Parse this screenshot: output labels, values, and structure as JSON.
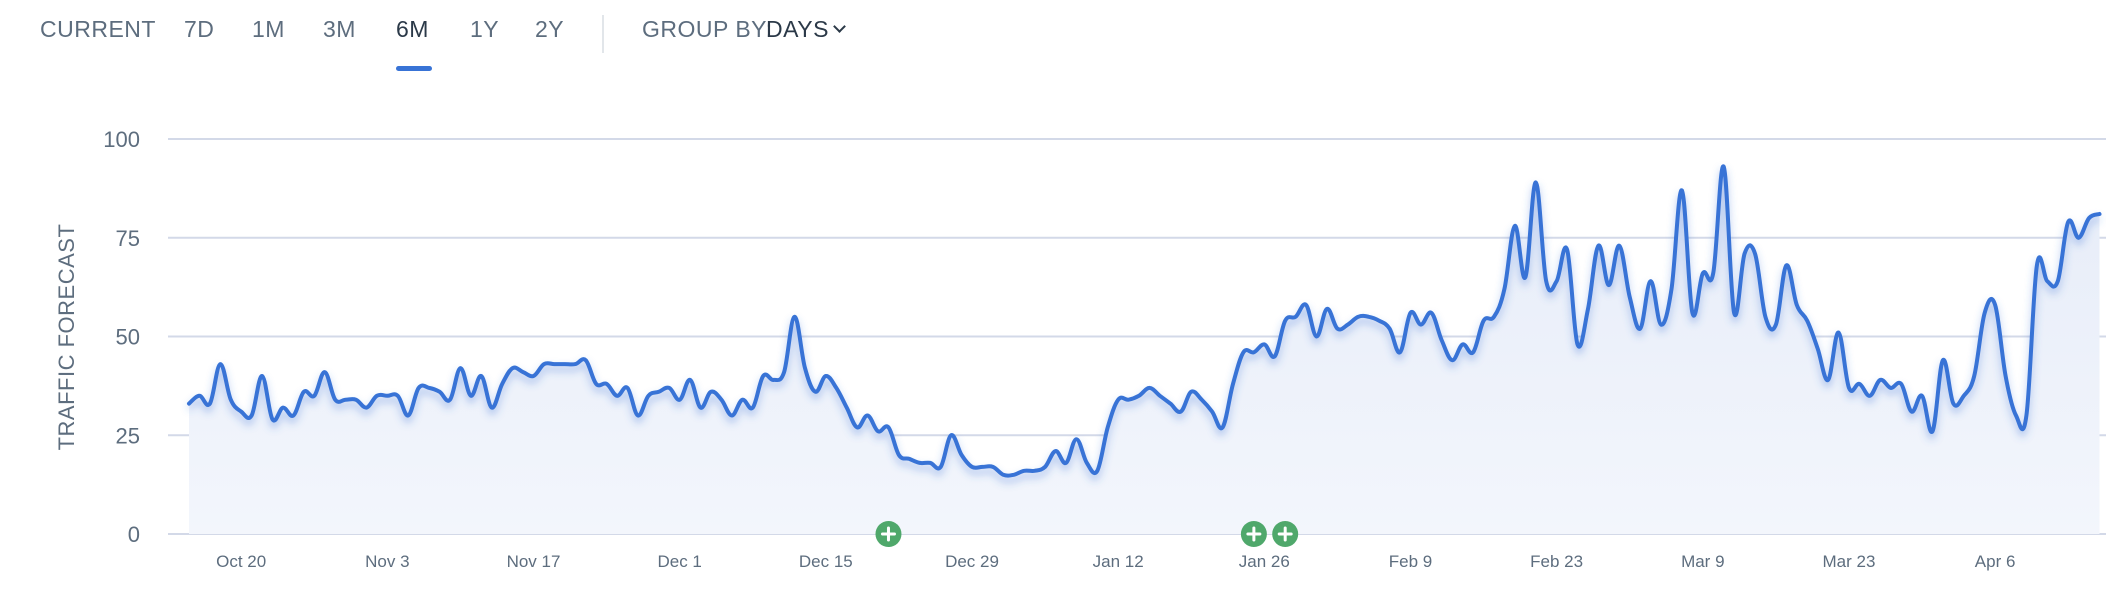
{
  "toolbar": {
    "tabs": [
      {
        "label": "CURRENT"
      },
      {
        "label": "7D"
      },
      {
        "label": "1M"
      },
      {
        "label": "3M"
      },
      {
        "label": "6M",
        "active": true
      },
      {
        "label": "1Y"
      },
      {
        "label": "2Y"
      }
    ],
    "group_by_label": "GROUP BY:",
    "group_by_value": "DAYS"
  },
  "colors": {
    "line": "#3873d6",
    "area": "#e9eef8",
    "gridline": "#d3d9e8",
    "annotation": "#4fa86b",
    "text": "#5d6d7e",
    "active_tab": "#2b3948"
  },
  "chart_data": {
    "type": "area",
    "ylabel": "TRAFFIC FORECAST",
    "xlabel": "",
    "ylim": [
      0,
      100
    ],
    "yticks": [
      0,
      25,
      50,
      75,
      100
    ],
    "grid": true,
    "x_start": "Oct 15",
    "x_tick_labels": [
      "Oct 20",
      "Nov 3",
      "Nov 17",
      "Dec 1",
      "Dec 15",
      "Dec 29",
      "Jan 12",
      "Jan 26",
      "Feb 9",
      "Feb 23",
      "Mar 9",
      "Mar 23",
      "Apr 6"
    ],
    "annotations": [
      {
        "date": "Dec 21",
        "icon": "plus-icon"
      },
      {
        "date": "Jan 25",
        "icon": "plus-icon"
      },
      {
        "date": "Jan 28",
        "icon": "plus-icon"
      }
    ],
    "series": [
      {
        "values": [
          33,
          35,
          33,
          43,
          34,
          31,
          30,
          40,
          29,
          32,
          30,
          36,
          35,
          41,
          34,
          34,
          34,
          32,
          35,
          35,
          35,
          30,
          37,
          37,
          36,
          34,
          42,
          35,
          40,
          32,
          38,
          42,
          41,
          40,
          43,
          43,
          43,
          43,
          44,
          38,
          38,
          35,
          37,
          30,
          35,
          36,
          37,
          34,
          39,
          32,
          36,
          34,
          30,
          34,
          32,
          40,
          39,
          41,
          55,
          42,
          36,
          40,
          37,
          32,
          27,
          30,
          26,
          27,
          20,
          19,
          18,
          18,
          17,
          25,
          20,
          17,
          17,
          17,
          15,
          15,
          16,
          16,
          17,
          21,
          18,
          24,
          18,
          16,
          27,
          34,
          34,
          35,
          37,
          35,
          33,
          31,
          36,
          34,
          31,
          27,
          38,
          46,
          46,
          48,
          45,
          54,
          55,
          58,
          50,
          57,
          52,
          53,
          55,
          55,
          54,
          52,
          46,
          56,
          53,
          56,
          49,
          44,
          48,
          46,
          54,
          55,
          62,
          78,
          65,
          89,
          64,
          64,
          72,
          48,
          57,
          73,
          63,
          73,
          60,
          52,
          64,
          53,
          62,
          87,
          56,
          66,
          66,
          93,
          56,
          71,
          71,
          55,
          53,
          68,
          58,
          54,
          47,
          39,
          51,
          37,
          38,
          35,
          39,
          37,
          38,
          31,
          35,
          26,
          44,
          33,
          35,
          40,
          56,
          58,
          40,
          30,
          30,
          68,
          64,
          64,
          79,
          75,
          80,
          81
        ]
      }
    ]
  }
}
